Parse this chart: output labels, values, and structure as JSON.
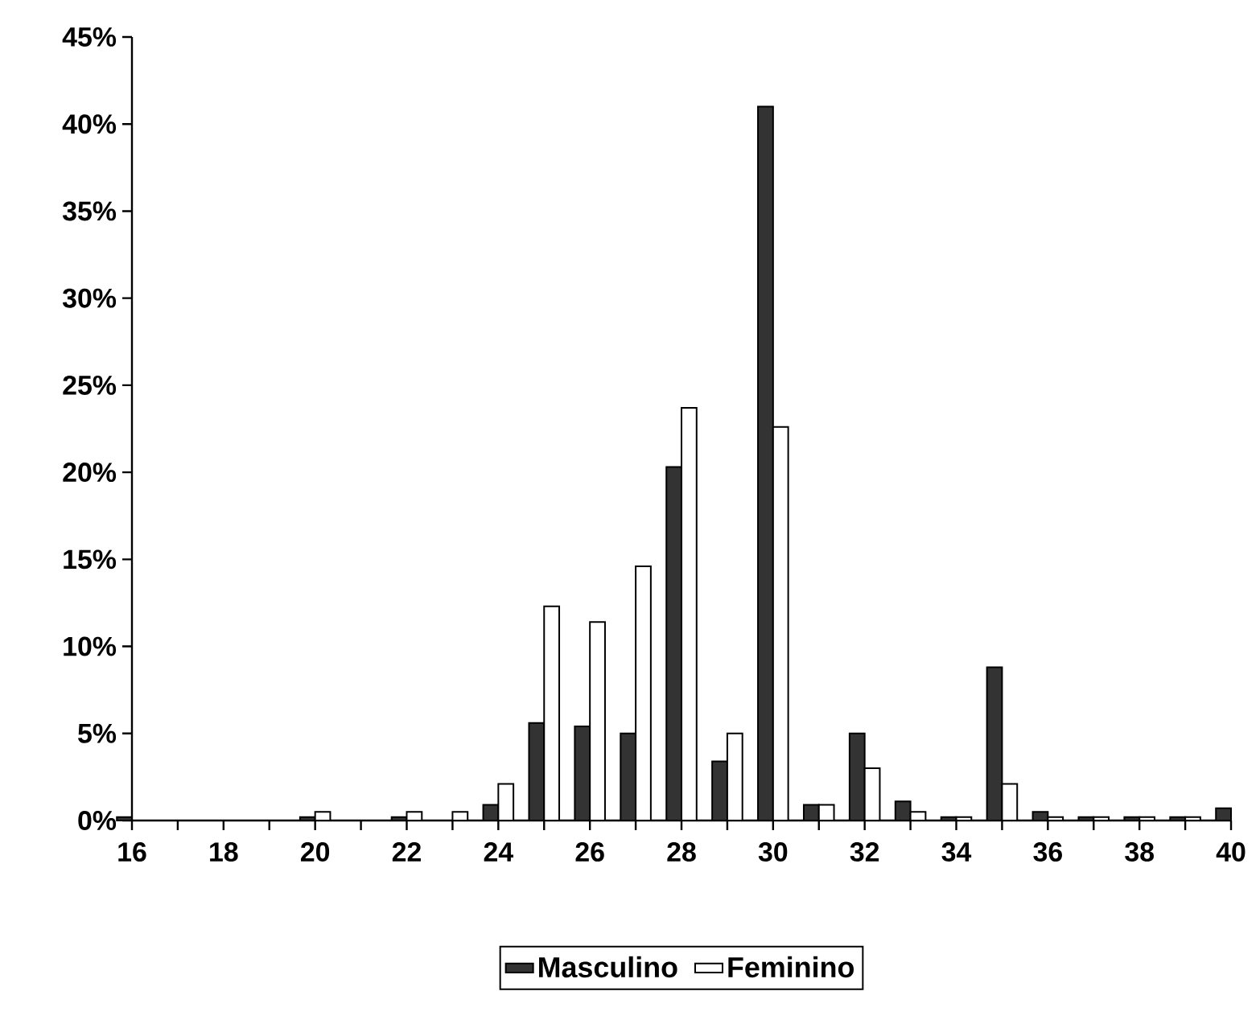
{
  "chart_data": {
    "type": "bar",
    "x": [
      16,
      17,
      18,
      19,
      20,
      21,
      22,
      23,
      24,
      25,
      26,
      27,
      28,
      29,
      30,
      31,
      32,
      33,
      34,
      35,
      36,
      37,
      38,
      39,
      40
    ],
    "series": [
      {
        "name": "Masculino",
        "color": "#333333",
        "values": [
          0.2,
          0,
          0,
          0,
          0.2,
          0,
          0.2,
          0,
          0.9,
          5.6,
          5.4,
          5.0,
          20.3,
          3.4,
          41.0,
          0.9,
          5.0,
          1.1,
          0.2,
          8.8,
          0.5,
          0.2,
          0.2,
          0.2,
          0.7
        ]
      },
      {
        "name": "Feminino",
        "color": "#ffffff",
        "values": [
          0,
          0,
          0,
          0,
          0.5,
          0,
          0.5,
          0.5,
          2.1,
          12.3,
          11.4,
          14.6,
          23.7,
          5.0,
          22.6,
          0.9,
          3.0,
          0.5,
          0.2,
          2.1,
          0.2,
          0.2,
          0.2,
          0.2,
          0
        ]
      }
    ],
    "xlim": [
      16,
      40
    ],
    "xticks": [
      16,
      {
        "value": 17,
        "label": null
      },
      18,
      {
        "value": 19,
        "label": null
      },
      20,
      {
        "value": 21,
        "label": null
      },
      22,
      {
        "value": 23,
        "label": null
      },
      24,
      {
        "value": 25,
        "label": null
      },
      26,
      {
        "value": 27,
        "label": null
      },
      28,
      {
        "value": 29,
        "label": null
      },
      30,
      {
        "value": 31,
        "label": null
      },
      32,
      {
        "value": 33,
        "label": null
      },
      34,
      {
        "value": 35,
        "label": null
      },
      36,
      {
        "value": 37,
        "label": null
      },
      38,
      {
        "value": 39,
        "label": null
      },
      40
    ],
    "ylim": [
      0,
      45
    ],
    "yticks": [
      {
        "value": 0,
        "label": "0%"
      },
      {
        "value": 5,
        "label": "5%"
      },
      {
        "value": 10,
        "label": "10%"
      },
      {
        "value": 15,
        "label": "15%"
      },
      {
        "value": 20,
        "label": "20%"
      },
      {
        "value": 25,
        "label": "25%"
      },
      {
        "value": 30,
        "label": "30%"
      },
      {
        "value": 35,
        "label": "35%"
      },
      {
        "value": 40,
        "label": "40%"
      },
      {
        "value": 45,
        "label": "45%"
      }
    ],
    "legend": "bottom"
  }
}
